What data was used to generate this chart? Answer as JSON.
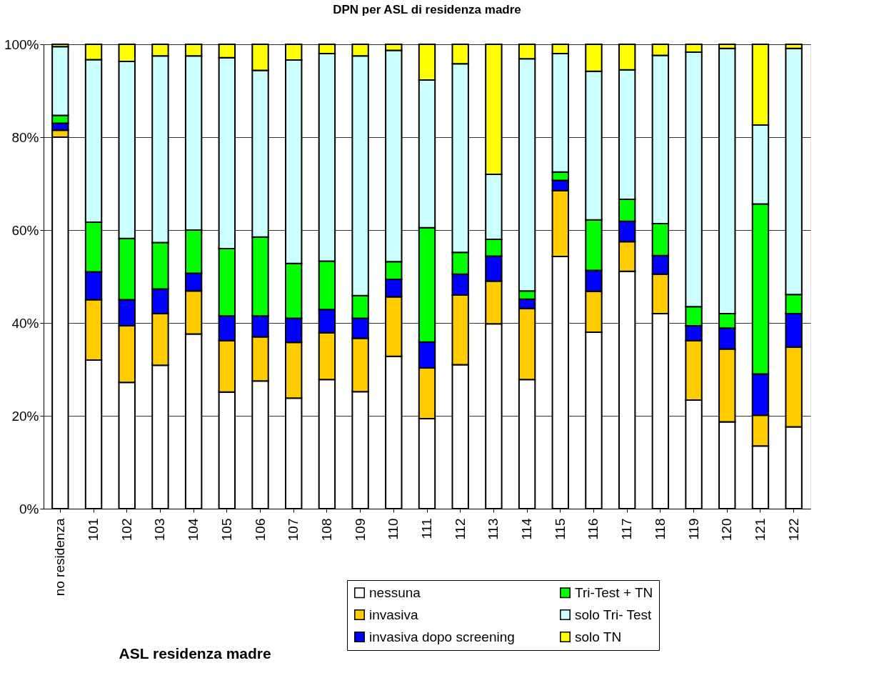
{
  "chart_data": {
    "type": "bar",
    "title": "DPN per ASL di residenza madre",
    "xlabel": "ASL residenza madre",
    "categories": [
      "no residenza",
      "101",
      "102",
      "103",
      "104",
      "105",
      "106",
      "107",
      "108",
      "109",
      "110",
      "111",
      "112",
      "113",
      "114",
      "115",
      "116",
      "117",
      "118",
      "119",
      "120",
      "121",
      "122"
    ],
    "stacked": true,
    "ylim": [
      0,
      100
    ],
    "yticks": [
      {
        "value": 0,
        "label": "0%"
      },
      {
        "value": 20,
        "label": "20%"
      },
      {
        "value": 40,
        "label": "40%"
      },
      {
        "value": 60,
        "label": "60%"
      },
      {
        "value": 80,
        "label": "80%"
      },
      {
        "value": 100,
        "label": "100%"
      }
    ],
    "grid": "y",
    "legend": "bottom right",
    "series": [
      {
        "name": "nessuna",
        "color": "#ffffff",
        "values": [
          80,
          32,
          27.2,
          30.9,
          37.6,
          25.1,
          27.5,
          23.8,
          27.8,
          25.2,
          32.8,
          19.4,
          31,
          39.8,
          27.8,
          54.3,
          38,
          51.1,
          42,
          23.4,
          18.7,
          13.5,
          17.6
        ]
      },
      {
        "name": "invasiva",
        "color": "#ffcc00",
        "values": [
          1.5,
          13,
          12.2,
          11.1,
          9.3,
          11.1,
          9.5,
          12,
          10.1,
          11.5,
          12.8,
          10.9,
          15,
          9.2,
          15.3,
          14.2,
          8.8,
          6.4,
          8.5,
          12.8,
          15.7,
          6.6,
          17.2
        ]
      },
      {
        "name": "invasiva dopo screening",
        "color": "#0000ff",
        "values": [
          1.5,
          6,
          5.6,
          5.3,
          3.8,
          5.3,
          4.5,
          5.2,
          5,
          4.3,
          3.8,
          5.6,
          4.5,
          5.4,
          2,
          2.2,
          4.5,
          4.4,
          4,
          3.2,
          4.5,
          8.9,
          7.2
        ]
      },
      {
        "name": "Tri-Test + TN",
        "color": "#00ff00",
        "values": [
          1.7,
          10.7,
          13.2,
          10,
          9.3,
          14.5,
          17,
          11.8,
          10.4,
          4.9,
          3.8,
          24.6,
          4.7,
          3.6,
          1.8,
          1.8,
          10.9,
          4.7,
          6.9,
          4.1,
          3.1,
          36.6,
          4.1
        ]
      },
      {
        "name": "solo Tri- Test",
        "color": "#ccffff",
        "values": [
          14.8,
          35,
          38.1,
          40.2,
          37.5,
          41.1,
          35.9,
          43.8,
          44.7,
          51.6,
          45.5,
          31.8,
          40.6,
          14,
          50,
          25.5,
          32,
          27.9,
          36.2,
          54.8,
          57.1,
          17,
          53
        ]
      },
      {
        "name": "solo TN",
        "color": "#ffff00",
        "values": [
          0.5,
          3.3,
          3.7,
          2.5,
          2.5,
          2.9,
          5.6,
          3.4,
          2,
          2.5,
          1.3,
          7.7,
          4.2,
          28,
          3.1,
          2,
          5.8,
          5.5,
          2.4,
          1.7,
          0.9,
          17.4,
          0.9
        ]
      }
    ]
  }
}
